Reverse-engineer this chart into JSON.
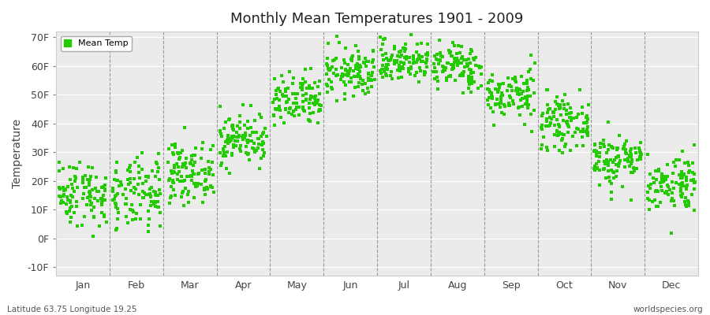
{
  "title": "Monthly Mean Temperatures 1901 - 2009",
  "ylabel": "Temperature",
  "yticks": [
    -10,
    0,
    10,
    20,
    30,
    40,
    50,
    60,
    70
  ],
  "ytick_labels": [
    "-10F",
    "0F",
    "10F",
    "20F",
    "30F",
    "40F",
    "50F",
    "60F",
    "70F"
  ],
  "ylim": [
    -13,
    72
  ],
  "months": [
    "Jan",
    "Feb",
    "Mar",
    "Apr",
    "May",
    "Jun",
    "Jul",
    "Aug",
    "Sep",
    "Oct",
    "Nov",
    "Dec"
  ],
  "dot_color": "#22cc00",
  "bg_color": "#ffffff",
  "plot_bg_color": "#ebebeb",
  "legend_label": "Mean Temp",
  "bottom_left": "Latitude 63.75 Longitude 19.25",
  "bottom_right": "worldspecies.org",
  "month_means_C": [
    -9.0,
    -9.5,
    -5.0,
    1.5,
    8.5,
    14.2,
    16.5,
    15.5,
    10.0,
    4.5,
    -2.5,
    -7.0
  ],
  "month_stds_C": [
    3.2,
    3.5,
    2.8,
    2.5,
    2.6,
    2.4,
    2.0,
    2.2,
    2.4,
    2.4,
    2.6,
    2.8
  ],
  "n_years": 109,
  "seed": 42
}
